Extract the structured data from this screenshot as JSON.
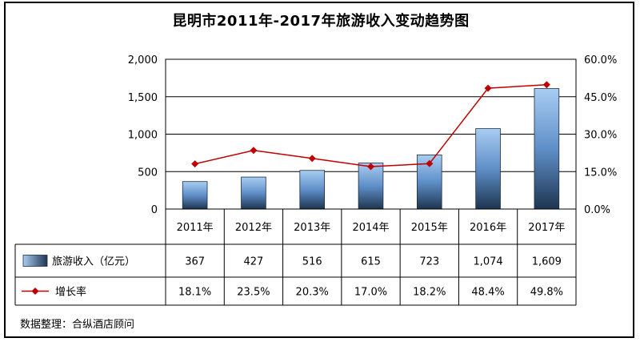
{
  "chart_data": {
    "type": "bar",
    "title": "昆明市2011年-2017年旅游收入变动趋势图",
    "categories": [
      "2011年",
      "2012年",
      "2013年",
      "2014年",
      "2015年",
      "2016年",
      "2017年"
    ],
    "series": [
      {
        "name": "旅游收入（亿元）",
        "type": "bar",
        "axis": "left",
        "values": [
          367,
          427,
          516,
          615,
          723,
          1074,
          1609
        ],
        "labels": [
          "367",
          "427",
          "516",
          "615",
          "723",
          "1,074",
          "1,609"
        ],
        "color": "#5b8fd0"
      },
      {
        "name": "增长率",
        "type": "line",
        "axis": "right",
        "values": [
          18.1,
          23.5,
          20.3,
          17.0,
          18.2,
          48.4,
          49.8
        ],
        "labels": [
          "18.1%",
          "23.5%",
          "20.3%",
          "17.0%",
          "18.2%",
          "48.4%",
          "49.8%"
        ],
        "color": "#c00000"
      }
    ],
    "y_left": {
      "ylim": [
        0,
        2000
      ],
      "ticks": [
        0,
        500,
        1000,
        1500,
        2000
      ],
      "tick_labels": [
        "0",
        "500",
        "1,000",
        "1,500",
        "2,000"
      ]
    },
    "y_right": {
      "ylim": [
        0,
        60
      ],
      "ticks": [
        0,
        15,
        30,
        45,
        60
      ],
      "tick_labels": [
        "0.0%",
        "15.0%",
        "30.0%",
        "45.0%",
        "60.0%"
      ]
    },
    "grid": true,
    "legend": "data-table"
  },
  "source_note": "数据整理：合纵酒店顾问"
}
